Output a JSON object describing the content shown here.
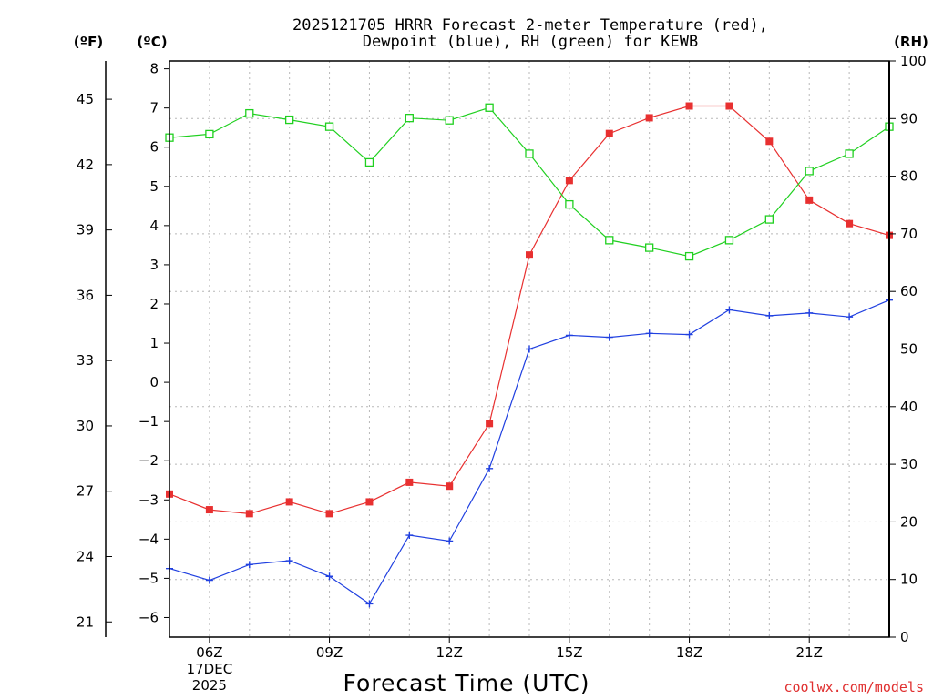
{
  "chart_data": {
    "type": "line",
    "title_lines": [
      "2025121705 HRRR Forecast 2-meter Temperature (red),",
      "Dewpoint (blue), RH (green) for KEWB"
    ],
    "xlabel": "Forecast Time (UTC)",
    "credit": "coolwx.com/models",
    "units": {
      "fahrenheit": "(ºF)",
      "celsius": "(ºC)",
      "rh": "(RH)"
    },
    "x_hours": [
      5,
      6,
      7,
      8,
      9,
      10,
      11,
      12,
      13,
      14,
      15,
      16,
      17,
      18,
      19,
      20,
      21,
      22,
      23
    ],
    "xlim": [
      5,
      23
    ],
    "x_ticks": [
      {
        "hour": 6,
        "lines": [
          "06Z",
          "17DEC",
          "2025"
        ]
      },
      {
        "hour": 9,
        "lines": [
          "09Z"
        ]
      },
      {
        "hour": 12,
        "lines": [
          "12Z"
        ]
      },
      {
        "hour": 15,
        "lines": [
          "15Z"
        ]
      },
      {
        "hour": 18,
        "lines": [
          "18Z"
        ]
      },
      {
        "hour": 21,
        "lines": [
          "21Z"
        ]
      }
    ],
    "celsius_axis": {
      "ylim": [
        -6.5,
        8.2
      ],
      "ticks": [
        -6,
        -5,
        -4,
        -3,
        -2,
        -1,
        0,
        1,
        2,
        3,
        4,
        5,
        6,
        7,
        8
      ]
    },
    "fahrenheit_axis": {
      "ticks": [
        21,
        24,
        27,
        30,
        33,
        36,
        39,
        42,
        45
      ]
    },
    "rh_axis": {
      "ylim": [
        0,
        100
      ],
      "ticks": [
        0,
        10,
        20,
        30,
        40,
        50,
        60,
        70,
        80,
        90,
        100
      ]
    },
    "series": [
      {
        "name": "Temperature",
        "color": "#e83030",
        "marker": "filled-square",
        "axis": "celsius",
        "values": [
          -2.85,
          -3.25,
          -3.35,
          -3.05,
          -3.35,
          -3.05,
          -2.55,
          -2.65,
          -1.05,
          3.25,
          5.15,
          6.35,
          6.75,
          7.05,
          7.05,
          6.15,
          4.65,
          4.05,
          3.75
        ]
      },
      {
        "name": "Dewpoint",
        "color": "#2040e0",
        "marker": "plus",
        "axis": "celsius",
        "values": [
          -4.75,
          -5.05,
          -4.65,
          -4.55,
          -4.95,
          -5.65,
          -3.9,
          -4.05,
          -2.2,
          0.85,
          1.2,
          1.15,
          1.25,
          1.22,
          1.85,
          1.7,
          1.77,
          1.67,
          2.1
        ]
      },
      {
        "name": "RH",
        "color": "#20d020",
        "marker": "open-square",
        "axis": "rh",
        "values": [
          86.7,
          87.3,
          90.9,
          89.8,
          88.6,
          82.4,
          90.1,
          89.7,
          91.9,
          83.9,
          75.1,
          68.9,
          67.6,
          66.1,
          68.9,
          72.5,
          80.9,
          83.9,
          88.6
        ]
      }
    ]
  }
}
